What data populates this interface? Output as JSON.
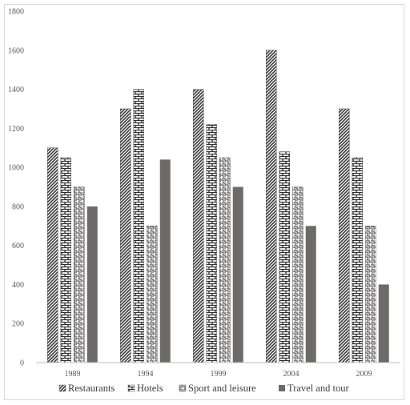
{
  "chart_data": {
    "type": "bar",
    "categories": [
      "1989",
      "1994",
      "1999",
      "2004",
      "2009"
    ],
    "series": [
      {
        "name": "Restaurants",
        "values": [
          1100,
          1300,
          1400,
          1600,
          1300
        ],
        "pattern": "diagonal-hatch"
      },
      {
        "name": "Hotels",
        "values": [
          1050,
          1400,
          1220,
          1080,
          1050
        ],
        "pattern": "brick"
      },
      {
        "name": "Sport and leisure",
        "values": [
          900,
          700,
          1050,
          900,
          700
        ],
        "pattern": "zigzag"
      },
      {
        "name": "Travel and tour",
        "values": [
          800,
          1040,
          900,
          700,
          400
        ],
        "pattern": "solid"
      }
    ],
    "yticks": [
      0,
      200,
      400,
      600,
      800,
      1000,
      1200,
      1400,
      1600,
      1800
    ],
    "ylim": [
      0,
      1800
    ],
    "title": "",
    "xlabel": "",
    "ylabel": "",
    "grid": false,
    "legend_position": "bottom",
    "colors": {
      "bar_dark": "#404040",
      "solid_bar": "#6e6a6a",
      "axis": "#bfbfbf"
    }
  }
}
